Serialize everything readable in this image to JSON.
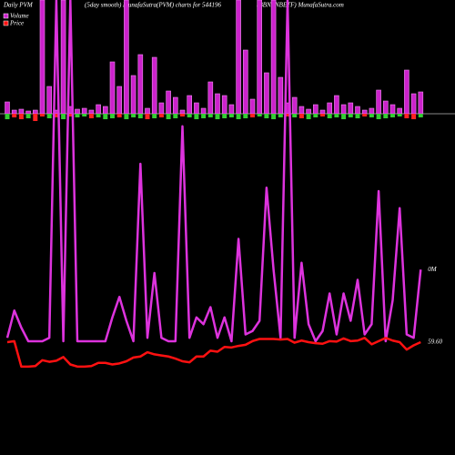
{
  "chart_data": {
    "type": "pvm",
    "title_left": "Daily PVM",
    "title": "(5day smooth) MunafaSutra(PVM) charts for 544196",
    "title_right": "(BBNPNBETF) MunafaSutra.com",
    "volume": {
      "name": "Volume",
      "color": "#cc22cc",
      "ylim": [
        0,
        125
      ],
      "values": [
        13,
        4,
        5,
        3,
        4,
        125,
        30,
        4,
        125,
        8,
        5,
        6,
        4,
        10,
        8,
        57,
        30,
        125,
        42,
        65,
        6,
        62,
        12,
        25,
        18,
        4,
        20,
        12,
        6,
        35,
        22,
        20,
        10,
        125,
        70,
        16,
        125,
        45,
        125,
        40,
        12,
        18,
        8,
        5,
        10,
        4,
        12,
        20,
        10,
        12,
        8,
        4,
        6,
        26,
        14,
        10,
        6,
        48,
        22,
        24
      ]
    },
    "price_change": {
      "ylim": [
        0,
        125
      ],
      "values": [
        6,
        4,
        6,
        5,
        8,
        3,
        5,
        4,
        6,
        3,
        4,
        3,
        5,
        4,
        6,
        5,
        4,
        6,
        4,
        5,
        6,
        5,
        4,
        6,
        5,
        3,
        4,
        6,
        5,
        4,
        6,
        5,
        4,
        6,
        5,
        4,
        3,
        5,
        6,
        4,
        3,
        4,
        5,
        6,
        4,
        3,
        5,
        4,
        6,
        4,
        5,
        3,
        4,
        6,
        5,
        4,
        3,
        5,
        6,
        4
      ],
      "colors": [
        "#33cc33",
        "#ff2222",
        "#ff2222",
        "#33cc33",
        "#ff2222",
        "#ff2222",
        "#33cc33",
        "#ff2222",
        "#33cc33",
        "#ff2222",
        "#33cc33",
        "#33cc33",
        "#ff2222",
        "#33cc33",
        "#33cc33",
        "#33cc33",
        "#ff2222",
        "#33cc33",
        "#33cc33",
        "#33cc33",
        "#ff2222",
        "#33cc33",
        "#ff2222",
        "#33cc33",
        "#33cc33",
        "#ff2222",
        "#33cc33",
        "#33cc33",
        "#33cc33",
        "#33cc33",
        "#33cc33",
        "#33cc33",
        "#33cc33",
        "#33cc33",
        "#33cc33",
        "#ff2222",
        "#33cc33",
        "#33cc33",
        "#33cc33",
        "#33cc33",
        "#ff2222",
        "#33cc33",
        "#ff2222",
        "#33cc33",
        "#33cc33",
        "#ff2222",
        "#33cc33",
        "#33cc33",
        "#33cc33",
        "#33cc33",
        "#33cc33",
        "#ff2222",
        "#33cc33",
        "#33cc33",
        "#33cc33",
        "#33cc33",
        "#33cc33",
        "#ff2222",
        "#ff2222",
        "#33cc33"
      ]
    },
    "volume_line": {
      "color": "#dd33dd",
      "ylim": [
        0,
        100
      ],
      "end_label": "0M",
      "values": [
        1,
        9,
        4,
        0,
        0,
        0,
        1,
        100,
        0,
        100,
        0,
        0,
        0,
        0,
        0,
        7,
        13,
        6,
        0,
        52,
        1,
        20,
        1,
        0,
        0,
        63,
        1,
        7,
        5,
        10,
        1,
        7,
        0,
        30,
        2,
        3,
        6,
        45,
        21,
        1,
        100,
        1,
        23,
        5,
        0,
        3,
        14,
        2,
        14,
        6,
        18,
        2,
        5,
        44,
        0,
        12,
        39,
        2,
        1,
        21
      ]
    },
    "price": {
      "name": "Price",
      "color": "#ff1111",
      "ylim": [
        50,
        62
      ],
      "end_label": "59.60",
      "values": [
        59.6,
        59.8,
        55.0,
        55.0,
        55.1,
        56.2,
        55.9,
        56.1,
        56.8,
        55.4,
        55.0,
        55.0,
        55.1,
        55.7,
        55.7,
        55.4,
        55.6,
        56.0,
        56.7,
        56.9,
        57.7,
        57.3,
        57.1,
        56.9,
        56.5,
        56.0,
        55.8,
        56.9,
        56.9,
        58.0,
        57.8,
        58.7,
        58.6,
        58.9,
        59.1,
        59.8,
        60.2,
        60.2,
        60.2,
        60.1,
        60.2,
        59.5,
        59.9,
        59.6,
        59.4,
        59.3,
        59.8,
        59.7,
        60.3,
        59.8,
        59.9,
        60.4,
        59.2,
        59.8,
        60.4,
        59.9,
        59.6,
        58.2,
        59.0,
        59.6
      ]
    }
  }
}
